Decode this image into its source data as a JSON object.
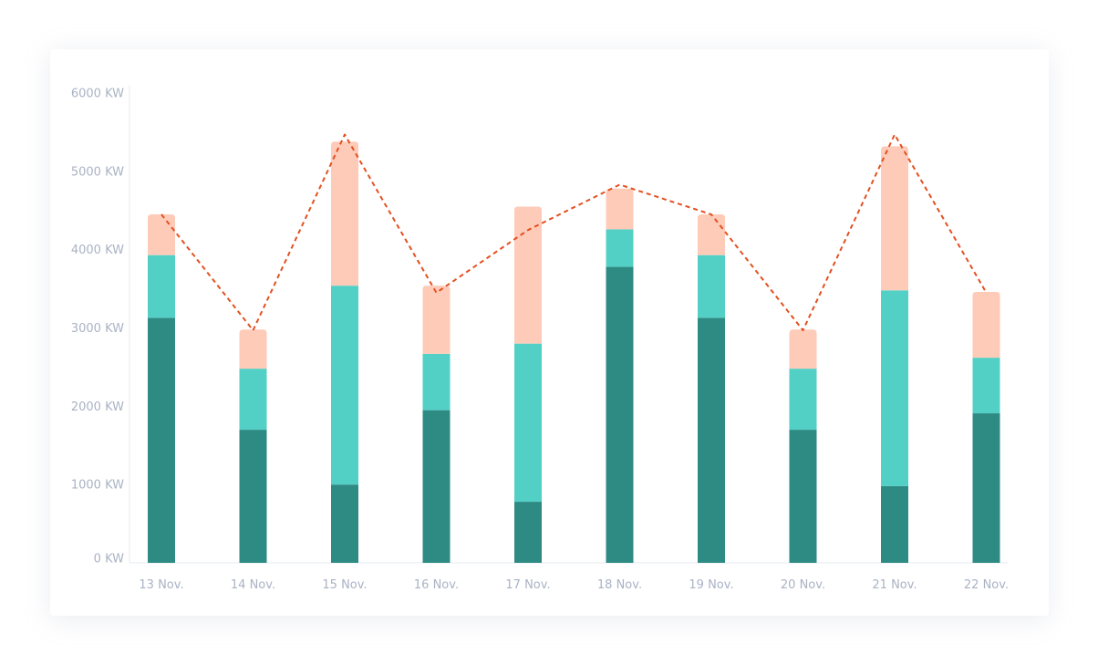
{
  "chart_data": {
    "type": "bar",
    "stacked": true,
    "categories": [
      "13 Nov.",
      "14 Nov.",
      "15 Nov.",
      "16 Nov.",
      "17 Nov.",
      "18 Nov.",
      "19 Nov.",
      "20 Nov.",
      "21 Nov.",
      "22 Nov."
    ],
    "series": [
      {
        "values": [
          3130,
          1700,
          1000,
          1950,
          780,
          3780,
          3130,
          1700,
          980,
          1910
        ],
        "color": "#2e8b84"
      },
      {
        "values": [
          800,
          780,
          2540,
          720,
          2020,
          480,
          800,
          780,
          2500,
          710
        ],
        "color": "#53d0c5"
      },
      {
        "values": [
          520,
          500,
          1840,
          870,
          1750,
          520,
          520,
          500,
          1840,
          840
        ],
        "color": "#fecbb9"
      }
    ],
    "line": {
      "style": "dashed",
      "color": "#e35020",
      "values": [
        4450,
        2970,
        5470,
        3450,
        4250,
        4830,
        4450,
        2970,
        5470,
        3450
      ]
    },
    "yticks": [
      0,
      1000,
      2000,
      3000,
      4000,
      5000,
      6000
    ],
    "ytick_labels": [
      "0 KW",
      "1000 KW",
      "2000 KW",
      "3000 KW",
      "4000 KW",
      "5000 KW",
      "6000 KW"
    ],
    "ylim": [
      0,
      6000
    ],
    "grid": false,
    "legend": "none"
  }
}
